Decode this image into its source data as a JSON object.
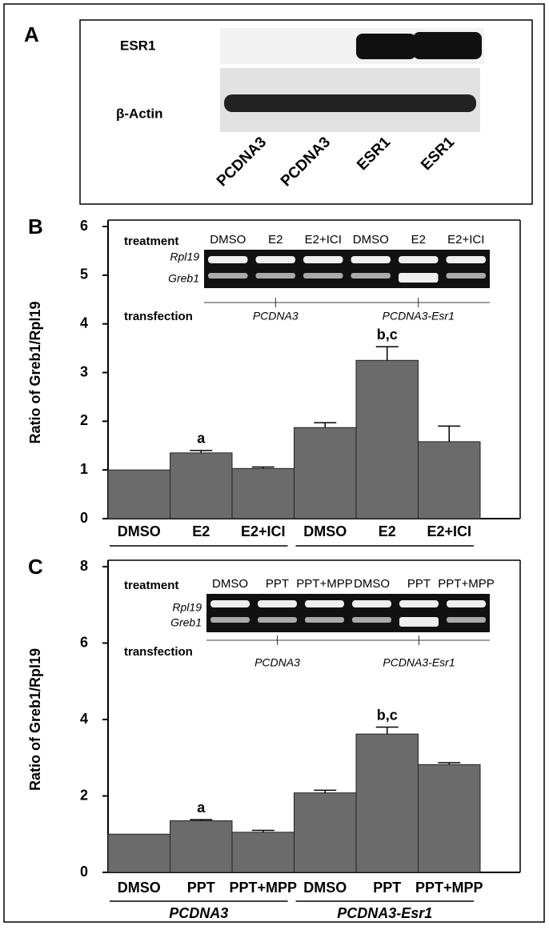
{
  "panel_a": {
    "label": "A",
    "bands": [
      "ESR1",
      "β-Actin"
    ],
    "lanes": [
      "PCDNA3",
      "PCDNA3",
      "ESR1",
      "ESR1"
    ]
  },
  "chart_data": [
    {
      "type": "bar",
      "panel_label": "B",
      "ylabel": "Ratio of Greb1/Rpl19",
      "categories": [
        "DMSO",
        "E2",
        "E2+ICI",
        "DMSO",
        "E2",
        "E2+ICI"
      ],
      "values": [
        1.0,
        1.35,
        1.03,
        1.87,
        3.25,
        1.58
      ],
      "errors": [
        null,
        0.05,
        0.03,
        0.1,
        0.28,
        0.32
      ],
      "bar_labels": [
        null,
        "a",
        null,
        null,
        "b,c",
        null
      ],
      "color": "#6b6b6b",
      "ylim": [
        0,
        6
      ],
      "yticks": [
        0,
        1,
        2,
        3,
        4,
        5,
        6
      ],
      "inset": {
        "treatment_label": "treatment",
        "treatments": [
          "DMSO",
          "E2",
          "E2+ICI",
          "DMSO",
          "E2",
          "E2+ICI"
        ],
        "rows": [
          "Rpl19",
          "Greb1"
        ],
        "transfection_label": "transfection",
        "groups": [
          "PCDNA3",
          "PCDNA3-Esr1"
        ]
      }
    },
    {
      "type": "bar",
      "panel_label": "C",
      "ylabel": "Ratio of Greb1/Rpl19",
      "categories": [
        "DMSO",
        "PPT",
        "PPT+MPP",
        "DMSO",
        "PPT",
        "PPT+MPP"
      ],
      "values": [
        1.0,
        1.35,
        1.05,
        2.08,
        3.62,
        2.82
      ],
      "errors": [
        null,
        0.03,
        0.05,
        0.07,
        0.18,
        0.05
      ],
      "bar_labels": [
        null,
        "a",
        null,
        null,
        "b,c",
        null
      ],
      "group_labels": [
        "PCDNA3",
        "PCDNA3-Esr1"
      ],
      "color": "#6b6b6b",
      "ylim": [
        0,
        8
      ],
      "yticks": [
        0,
        2,
        4,
        6,
        8
      ],
      "inset": {
        "treatment_label": "treatment",
        "treatments": [
          "DMSO",
          "PPT",
          "PPT+MPP",
          "DMSO",
          "PPT",
          "PPT+MPP"
        ],
        "rows": [
          "Rpl19",
          "Greb1"
        ],
        "transfection_label": "transfection",
        "groups": [
          "PCDNA3",
          "PCDNA3-Esr1"
        ]
      }
    }
  ]
}
